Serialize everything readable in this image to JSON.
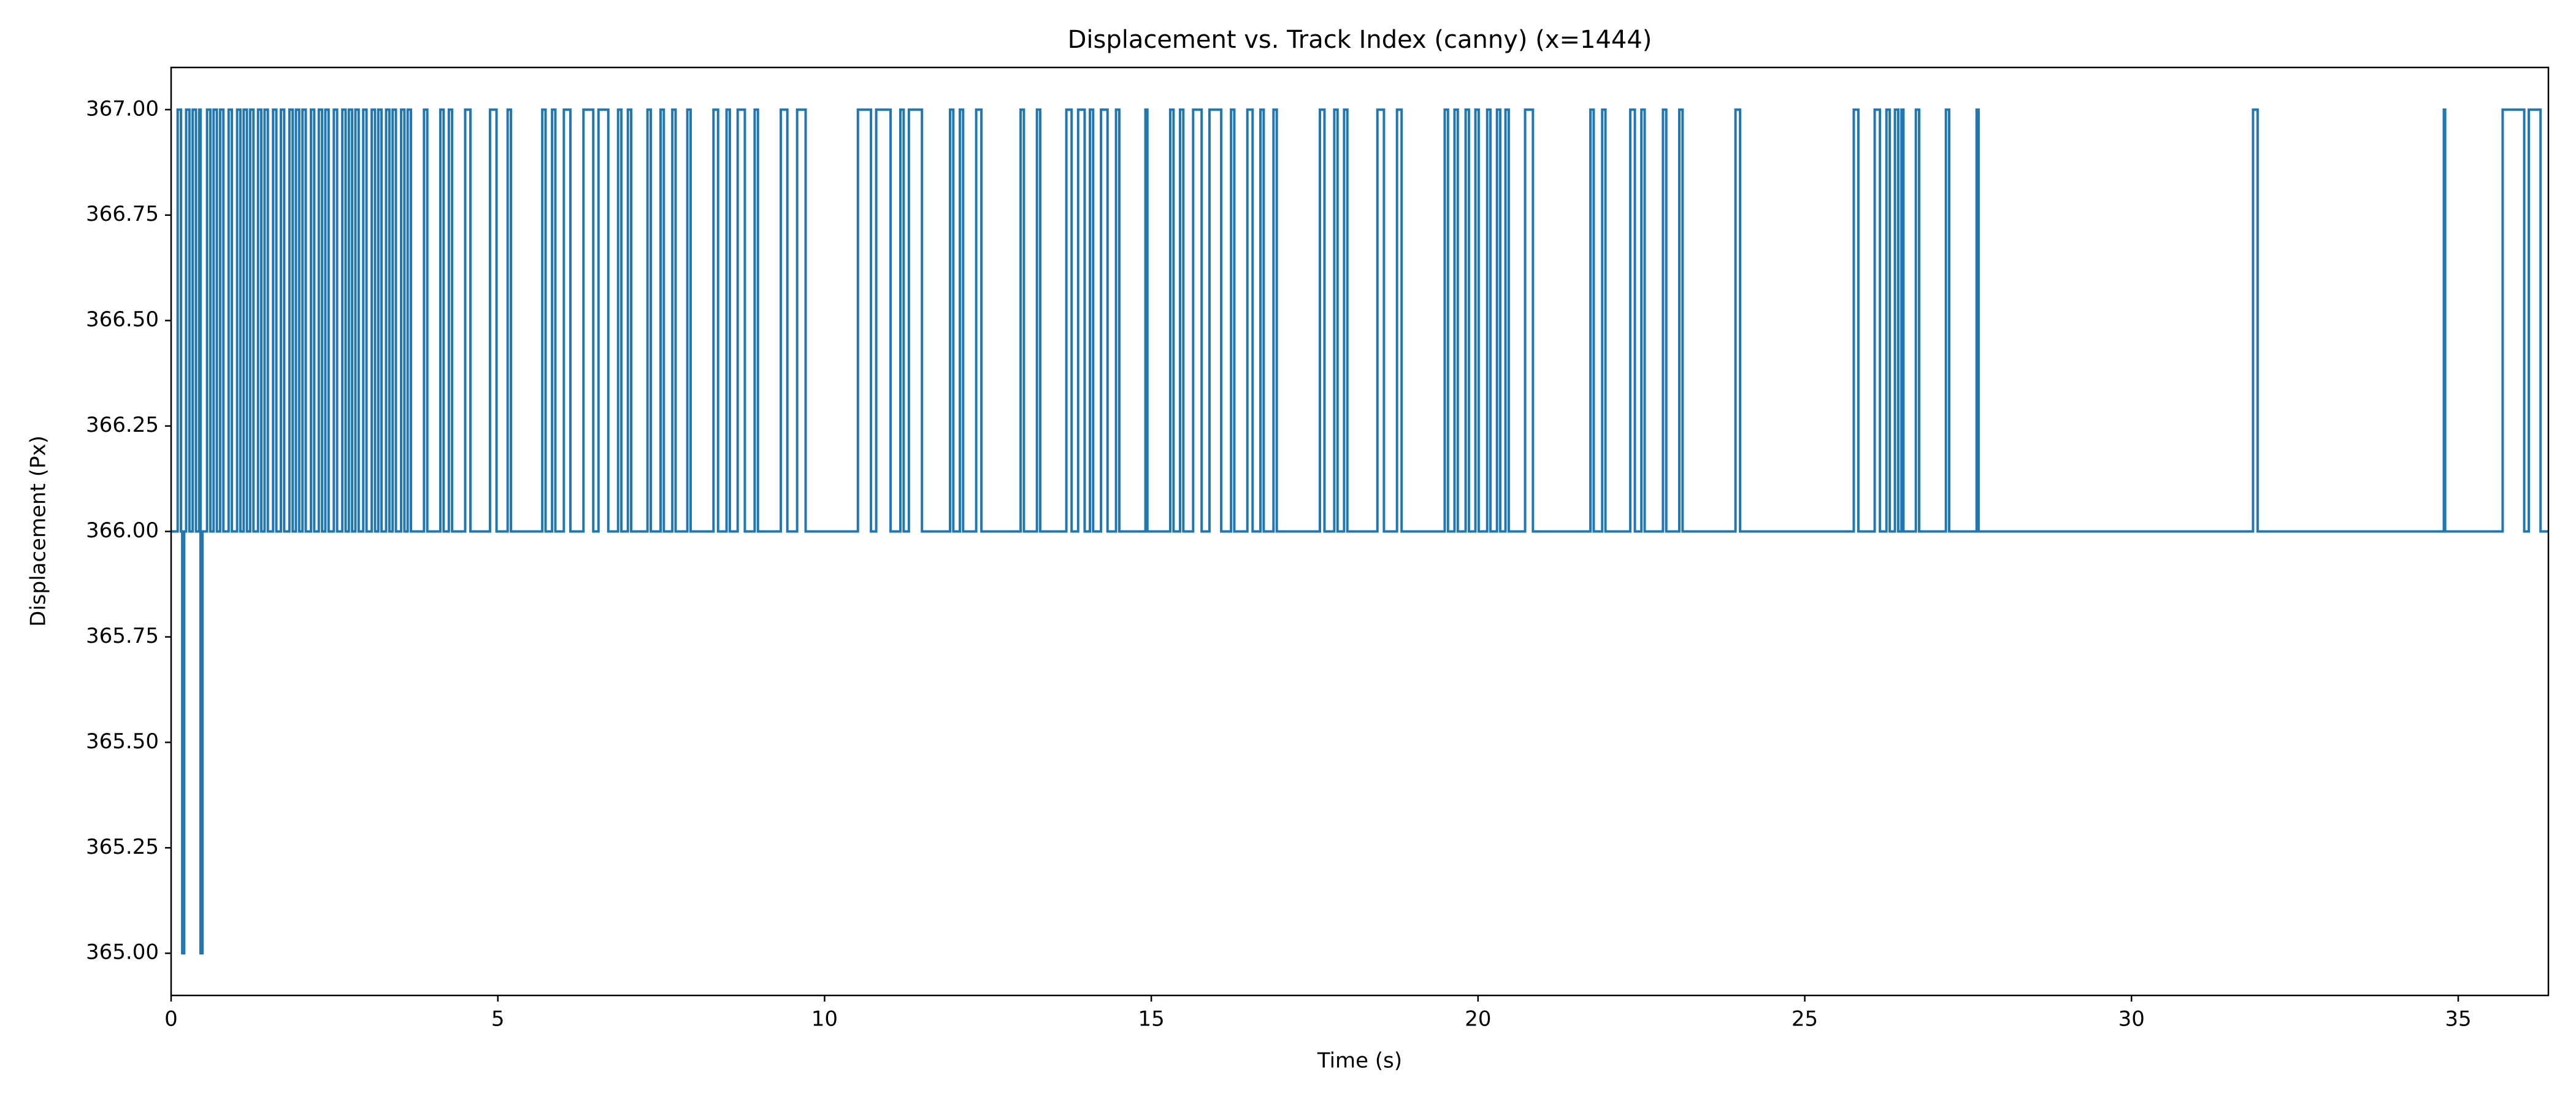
{
  "chart_data": {
    "type": "line",
    "drawstyle": "steps-post",
    "title": "Displacement vs. Track Index (canny) (x=1444)",
    "xlabel": "Time (s)",
    "ylabel": "Displacement (Px)",
    "xlim": [
      0,
      36.38
    ],
    "ylim": [
      364.9,
      367.1
    ],
    "xticks": [
      0,
      5,
      10,
      15,
      20,
      25,
      30,
      35
    ],
    "yticks": [
      {
        "value": 365,
        "label": "365.00"
      },
      {
        "value": 365.25,
        "label": "365.25"
      },
      {
        "value": 365.5,
        "label": "365.50"
      },
      {
        "value": 365.75,
        "label": "365.75"
      },
      {
        "value": 366,
        "label": "366.00"
      },
      {
        "value": 366.25,
        "label": "366.25"
      },
      {
        "value": 366.5,
        "label": "366.50"
      },
      {
        "value": 366.75,
        "label": "366.75"
      },
      {
        "value": 367,
        "label": "367.00"
      }
    ],
    "grid": false,
    "color": "#1f77b4",
    "x": [
      0,
      0.1,
      0.15,
      0.17,
      0.2,
      0.23,
      0.28,
      0.33,
      0.38,
      0.43,
      0.45,
      0.48,
      0.55,
      0.6,
      0.65,
      0.7,
      0.75,
      0.8,
      0.88,
      0.93,
      1.01,
      1.06,
      1.11,
      1.16,
      1.21,
      1.26,
      1.33,
      1.38,
      1.43,
      1.48,
      1.56,
      1.61,
      1.68,
      1.73,
      1.81,
      1.86,
      1.91,
      1.96,
      2.01,
      2.06,
      2.14,
      2.19,
      2.26,
      2.31,
      2.36,
      2.41,
      2.49,
      2.54,
      2.62,
      2.67,
      2.72,
      2.77,
      2.82,
      2.87,
      2.94,
      2.99,
      3.07,
      3.12,
      3.17,
      3.22,
      3.29,
      3.34,
      3.39,
      3.44,
      3.52,
      3.57,
      3.62,
      3.67,
      3.87,
      3.92,
      4.12,
      4.17,
      4.25,
      4.3,
      4.5,
      4.58,
      4.88,
      4.98,
      5.15,
      5.2,
      5.68,
      5.73,
      5.83,
      5.88,
      6.01,
      6.11,
      6.31,
      6.46,
      6.54,
      6.69,
      6.84,
      6.89,
      6.99,
      7.04,
      7.29,
      7.34,
      7.49,
      7.54,
      7.67,
      7.72,
      7.9,
      7.95,
      8.3,
      8.37,
      8.5,
      8.55,
      8.67,
      8.78,
      8.93,
      8.98,
      9.33,
      9.43,
      9.58,
      9.71,
      10.51,
      10.71,
      10.79,
      11.01,
      11.16,
      11.21,
      11.29,
      11.49,
      11.92,
      11.97,
      12.07,
      12.12,
      12.32,
      12.4,
      13.0,
      13.05,
      13.25,
      13.3,
      13.7,
      13.78,
      13.88,
      13.98,
      14.06,
      14.11,
      14.23,
      14.33,
      14.46,
      14.51,
      14.91,
      14.94,
      15.29,
      15.34,
      15.44,
      15.49,
      15.64,
      15.77,
      15.89,
      16.07,
      16.22,
      16.27,
      16.47,
      16.55,
      16.67,
      16.72,
      16.87,
      16.92,
      17.58,
      17.65,
      17.8,
      17.85,
      17.95,
      18.0,
      18.46,
      18.56,
      18.76,
      18.83,
      19.49,
      19.54,
      19.64,
      19.69,
      19.81,
      19.86,
      19.96,
      20.01,
      20.14,
      20.19,
      20.29,
      20.34,
      20.42,
      20.47,
      20.72,
      20.84,
      21.72,
      21.77,
      21.9,
      21.95,
      22.33,
      22.4,
      22.5,
      22.55,
      22.83,
      22.88,
      23.08,
      23.13,
      23.94,
      24.01,
      25.75,
      25.82,
      26.07,
      26.15,
      26.25,
      26.3,
      26.38,
      26.43,
      26.48,
      26.51,
      26.7,
      26.75,
      27.16,
      27.21,
      27.63,
      27.66,
      31.86,
      31.93,
      34.78,
      34.8,
      35.68,
      36.01,
      36.08,
      36.26,
      36.38
    ],
    "values": [
      366,
      367,
      366,
      365,
      366,
      367,
      366,
      367,
      366,
      367,
      365,
      366,
      367,
      366,
      367,
      366,
      367,
      366,
      367,
      366,
      367,
      366,
      367,
      366,
      367,
      366,
      367,
      366,
      367,
      366,
      367,
      366,
      367,
      366,
      367,
      366,
      367,
      366,
      367,
      366,
      367,
      366,
      367,
      366,
      367,
      366,
      367,
      366,
      367,
      366,
      367,
      366,
      367,
      366,
      367,
      366,
      367,
      366,
      367,
      366,
      367,
      366,
      367,
      366,
      367,
      366,
      367,
      366,
      367,
      366,
      367,
      366,
      367,
      366,
      367,
      366,
      367,
      366,
      367,
      366,
      367,
      366,
      367,
      366,
      367,
      366,
      367,
      366,
      367,
      366,
      367,
      366,
      367,
      366,
      367,
      366,
      367,
      366,
      367,
      366,
      367,
      366,
      367,
      366,
      367,
      366,
      367,
      366,
      367,
      366,
      367,
      366,
      367,
      366,
      367,
      366,
      367,
      366,
      367,
      366,
      367,
      366,
      367,
      366,
      367,
      366,
      367,
      366,
      367,
      366,
      367,
      366,
      367,
      366,
      367,
      366,
      367,
      366,
      367,
      366,
      367,
      366,
      367,
      366,
      367,
      366,
      367,
      366,
      367,
      366,
      367,
      366,
      367,
      366,
      367,
      366,
      367,
      366,
      367,
      366,
      367,
      366,
      367,
      366,
      367,
      366,
      367,
      366,
      367,
      366,
      367,
      366,
      367,
      366,
      367,
      366,
      367,
      366,
      367,
      366,
      367,
      366,
      367,
      366,
      367,
      366,
      367,
      366,
      367,
      366,
      367,
      366,
      367,
      366,
      367,
      366,
      367,
      366,
      367,
      366,
      367,
      366,
      367,
      366,
      367,
      366,
      367,
      366,
      367,
      366,
      367,
      366,
      367,
      366,
      367,
      366,
      367,
      366,
      367,
      366,
      367,
      366,
      367,
      366,
      366
    ]
  }
}
